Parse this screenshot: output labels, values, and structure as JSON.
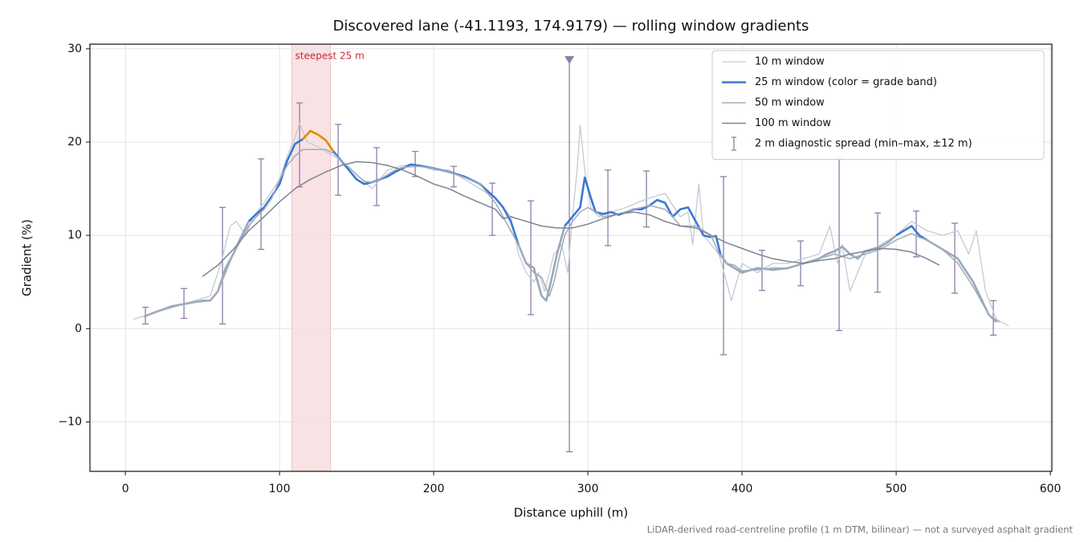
{
  "chart_data": {
    "type": "line",
    "title": "Discovered lane (-41.1193, 174.9179) — rolling window gradients",
    "xlabel": "Distance uphill (m)",
    "ylabel": "Gradient (%)",
    "footnote": "LiDAR-derived road-centreline profile (1 m DTM, bilinear) — not a surveyed asphalt gradient",
    "xlim": [
      -23,
      601
    ],
    "ylim": [
      -15.3,
      30.5
    ],
    "xticks": [
      0,
      100,
      200,
      300,
      400,
      500,
      600
    ],
    "yticks": [
      {
        "value": -10,
        "label": "−10"
      },
      0,
      10,
      20,
      30
    ],
    "grid": true,
    "legend": "upper right",
    "span": {
      "label": "steepest 25 m",
      "x": [
        108,
        133
      ],
      "color": "#d9535f",
      "label_color": "#c0303a"
    },
    "series": [
      {
        "name": "10 m window",
        "color": "#c4cad4",
        "width": 1.3,
        "x": [
          5,
          15,
          25,
          35,
          45,
          55,
          62,
          68,
          72,
          78,
          83,
          90,
          100,
          105,
          110,
          113,
          118,
          125,
          130,
          140,
          150,
          160,
          170,
          180,
          190,
          200,
          210,
          220,
          230,
          240,
          250,
          255,
          260,
          265,
          268,
          272,
          278,
          283,
          287,
          290,
          293,
          295,
          298,
          302,
          307,
          315,
          325,
          332,
          340,
          350,
          360,
          365,
          368,
          372,
          375,
          380,
          385,
          390,
          393,
          400,
          410,
          420,
          430,
          440,
          450,
          457,
          462,
          465,
          470,
          475,
          480,
          490,
          500,
          510,
          520,
          530,
          540,
          547,
          552,
          558,
          565,
          573
        ],
        "values": [
          1,
          1.5,
          2,
          2.5,
          3,
          3.5,
          7,
          11,
          11.5,
          10,
          12,
          13.5,
          16,
          18.5,
          20.5,
          22,
          20,
          19.5,
          19,
          18,
          16.5,
          15,
          17,
          17.5,
          17.5,
          17,
          17,
          16,
          15,
          14,
          12,
          8,
          6,
          5,
          6,
          4,
          8,
          9,
          6,
          12,
          17,
          21.8,
          17,
          13,
          12,
          12.5,
          13,
          13.5,
          14,
          14.5,
          12,
          12.5,
          9,
          15.5,
          10,
          9,
          8,
          5,
          3,
          7,
          6,
          7,
          7,
          7.5,
          8,
          11,
          7,
          9,
          4,
          6,
          8,
          9,
          10,
          11.5,
          10.5,
          10,
          10.5,
          8,
          10.5,
          4,
          1,
          0.3
        ]
      },
      {
        "name": "25 m window (color = grade band)",
        "color": "#3a78d4",
        "width": 2.6,
        "grade_bands": [
          {
            "below": 10,
            "color": "#9aa8ba"
          },
          {
            "below": 20,
            "color": "#3a78d4"
          },
          {
            "color": "#e08a00"
          }
        ],
        "x": [
          12,
          20,
          30,
          40,
          50,
          55,
          60,
          65,
          70,
          75,
          80,
          85,
          90,
          95,
          100,
          105,
          110,
          115,
          120,
          125,
          130,
          135,
          140,
          145,
          150,
          155,
          160,
          165,
          170,
          175,
          180,
          185,
          190,
          200,
          210,
          220,
          230,
          240,
          245,
          250,
          255,
          260,
          265,
          270,
          273,
          276,
          280,
          285,
          290,
          295,
          298,
          302,
          305,
          310,
          315,
          320,
          330,
          335,
          340,
          345,
          350,
          355,
          360,
          365,
          370,
          375,
          380,
          383,
          386,
          390,
          400,
          410,
          420,
          430,
          440,
          450,
          455,
          460,
          465,
          470,
          475,
          480,
          490,
          495,
          500,
          505,
          510,
          515,
          520,
          530,
          540,
          550,
          560,
          565
        ],
        "values": [
          1.3,
          1.8,
          2.4,
          2.7,
          3,
          3,
          4,
          6.5,
          8,
          9.8,
          11.5,
          12.3,
          13,
          14.2,
          15.5,
          18,
          19.8,
          20.3,
          21.2,
          20.8,
          20.2,
          19,
          18,
          17,
          16,
          15.5,
          15.7,
          16,
          16.3,
          16.8,
          17.2,
          17.6,
          17.5,
          17.2,
          16.8,
          16.3,
          15.5,
          14,
          13,
          11.5,
          9,
          7,
          6.5,
          3.5,
          3,
          5,
          8,
          11,
          12,
          13,
          16.2,
          14,
          12.5,
          12.3,
          12.5,
          12.2,
          12.8,
          12.8,
          13.2,
          13.8,
          13.5,
          12,
          12.8,
          13,
          11.5,
          10,
          9.8,
          10,
          8,
          7,
          6,
          6.5,
          6.3,
          6.5,
          7,
          7.5,
          8,
          8.3,
          8.8,
          8,
          7.5,
          8.3,
          8.8,
          9.3,
          10,
          10.5,
          11,
          10,
          9.5,
          8.5,
          7.5,
          5,
          1.5,
          0.7
        ]
      },
      {
        "name": "50 m window",
        "color": "#a3adbd",
        "width": 1.6,
        "x": [
          12,
          20,
          30,
          40,
          50,
          55,
          60,
          65,
          70,
          75,
          80,
          85,
          90,
          95,
          100,
          105,
          110,
          115,
          120,
          125,
          130,
          135,
          140,
          145,
          150,
          155,
          160,
          165,
          170,
          175,
          180,
          190,
          200,
          210,
          220,
          230,
          240,
          245,
          250,
          255,
          260,
          265,
          270,
          275,
          278,
          282,
          285,
          290,
          295,
          300,
          305,
          310,
          320,
          330,
          340,
          350,
          355,
          360,
          370,
          380,
          385,
          390,
          395,
          400,
          410,
          420,
          430,
          440,
          450,
          460,
          470,
          480,
          490,
          500,
          510,
          515,
          520,
          530,
          540,
          550,
          560,
          567
        ],
        "values": [
          1.3,
          1.8,
          2.3,
          2.7,
          2.9,
          3,
          4,
          6,
          8,
          9.5,
          11,
          12,
          12.8,
          14,
          16,
          17.5,
          18.5,
          19.2,
          19.2,
          19.2,
          19.2,
          18.8,
          18,
          17.3,
          16.5,
          15.8,
          15.7,
          16,
          16.5,
          17,
          17.3,
          17.4,
          17.2,
          16.8,
          16.2,
          15.5,
          13.5,
          12,
          10.5,
          9,
          7,
          6,
          5.5,
          3.5,
          5,
          8,
          10,
          11.5,
          12.5,
          13,
          12.5,
          12,
          12.3,
          12.8,
          13.2,
          12.8,
          12,
          11,
          11,
          10,
          8,
          7,
          6.8,
          6.2,
          6.3,
          6.5,
          6.5,
          7,
          7.5,
          8,
          7.5,
          8,
          8.5,
          9.5,
          10.2,
          9.8,
          9.5,
          8.5,
          7,
          4.5,
          1.5,
          0.7
        ]
      },
      {
        "name": "100 m window",
        "color": "#7e8494",
        "width": 1.5,
        "x": [
          50,
          60,
          70,
          80,
          90,
          100,
          110,
          120,
          130,
          140,
          150,
          160,
          170,
          180,
          190,
          200,
          210,
          220,
          230,
          240,
          245,
          250,
          260,
          270,
          280,
          290,
          300,
          310,
          320,
          330,
          340,
          350,
          360,
          370,
          380,
          390,
          400,
          410,
          420,
          430,
          440,
          450,
          460,
          470,
          480,
          490,
          500,
          510,
          520,
          528
        ],
        "values": [
          5.6,
          6.8,
          8.5,
          10.5,
          12,
          13.6,
          15,
          16,
          16.8,
          17.5,
          17.9,
          17.8,
          17.5,
          17,
          16.3,
          15.5,
          15,
          14.2,
          13.5,
          12.8,
          11.8,
          12,
          11.5,
          11,
          10.8,
          10.8,
          11.2,
          11.8,
          12.3,
          12.5,
          12.2,
          11.5,
          11,
          10.8,
          10,
          9.2,
          8.6,
          8,
          7.5,
          7.2,
          7,
          7.3,
          7.5,
          8,
          8.3,
          8.6,
          8.5,
          8.2,
          7.5,
          6.8
        ]
      }
    ],
    "errorbars": {
      "name": "2 m diagnostic spread (min–max, ±12 m)",
      "color": "#8a7fa8",
      "x": [
        13,
        38,
        63,
        88,
        113,
        138,
        163,
        188,
        213,
        238,
        263,
        288,
        313,
        338,
        388,
        413,
        438,
        463,
        488,
        513,
        538,
        563
      ],
      "low": [
        0.5,
        1.1,
        0.5,
        8.5,
        15.2,
        14.3,
        13.2,
        16.3,
        15.2,
        10,
        1.5,
        -13.2,
        8.9,
        10.9,
        -2.8,
        4.1,
        4.6,
        -0.2,
        3.9,
        7.7,
        3.8,
        -0.7
      ],
      "high": [
        2.3,
        4.3,
        13,
        18.2,
        24.2,
        21.9,
        19.4,
        19,
        17.4,
        15.6,
        13.7,
        28.7,
        17,
        16.9,
        16.3,
        8.4,
        9.4,
        18.3,
        12.4,
        12.6,
        11.3,
        3
      ],
      "clipped": [
        11
      ]
    }
  }
}
